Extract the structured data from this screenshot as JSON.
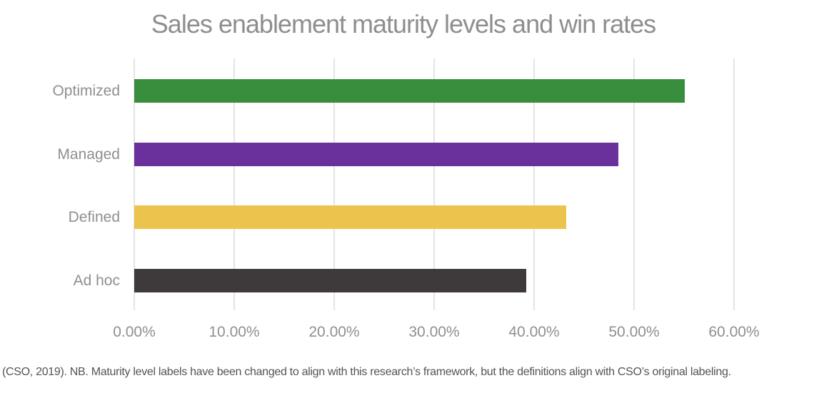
{
  "chart_data": {
    "type": "bar",
    "orientation": "horizontal",
    "title": "Sales enablement maturity levels and win rates",
    "categories": [
      "Optimized",
      "Managed",
      "Defined",
      "Ad hoc"
    ],
    "values": [
      55.1,
      48.4,
      43.2,
      39.2
    ],
    "value_unit": "%",
    "bar_colors": [
      "#388E3C",
      "#6A309B",
      "#ECC44D",
      "#3E393A"
    ],
    "xlabel": "",
    "ylabel": "",
    "xlim": [
      0,
      60
    ],
    "x_tick_values": [
      0,
      10,
      20,
      30,
      40,
      50,
      60
    ],
    "x_tick_labels": [
      "0.00%",
      "10.00%",
      "20.00%",
      "30.00%",
      "40.00%",
      "50.00%",
      "60.00%"
    ],
    "grid": "vertical-only",
    "legend": "none",
    "data_labels": "none"
  },
  "colors": {
    "title_text": "#8E8E8E",
    "axis_text": "#8F8F8F",
    "gridline": "#E4E4E4",
    "footnote_text": "#545454",
    "background": "#FFFFFF"
  },
  "footnote": "(CSO, 2019). NB. Maturity level labels have been changed to align with this research’s framework, but the definitions align with CSO’s original labeling."
}
